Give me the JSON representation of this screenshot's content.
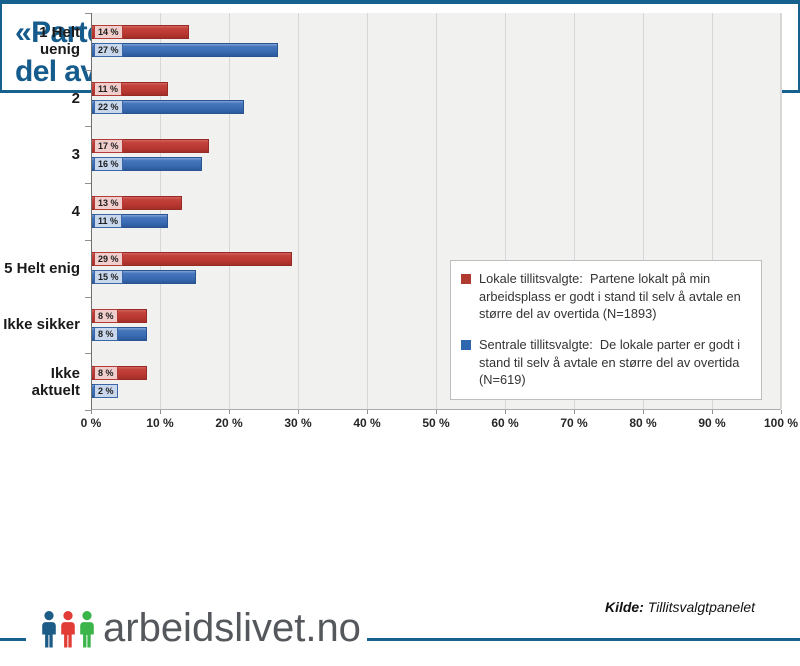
{
  "header": {
    "title": "«Partene lokalt er godt i stand til selv å avtale en større del av overtida.»"
  },
  "chart_data": {
    "type": "bar",
    "orientation": "horizontal",
    "title": "",
    "categories": [
      "1 Helt uenig",
      "2",
      "3",
      "4",
      "5 Helt enig",
      "Ikke sikker",
      "Ikke aktuelt"
    ],
    "series": [
      {
        "name": "Lokale tillitsvalgte:  Partene lokalt på min arbeidsplass er godt i stand til selv å avtale en større del av overtida (N=1893)",
        "color": "#bb3933",
        "values": [
          14,
          11,
          17,
          13,
          29,
          8,
          8
        ]
      },
      {
        "name": "Sentrale tillitsvalgte:  De lokale parter er godt i stand til selv å avtale en større del av overtida (N=619)",
        "color": "#3a6cb4",
        "values": [
          27,
          22,
          16,
          11,
          15,
          8,
          2
        ]
      }
    ],
    "value_suffix": " %",
    "xlim": [
      0,
      100
    ],
    "x_ticks": [
      "0 %",
      "10 %",
      "20 %",
      "30 %",
      "40 %",
      "50 %",
      "60 %",
      "70 %",
      "80 %",
      "90 %",
      "100 %"
    ],
    "grid": true,
    "legend_position": "inside-right",
    "plot_background": "#f1f1f0",
    "gridline_color": "#d7d7d7"
  },
  "footer": {
    "kilde_label": "Kilde:",
    "kilde_value": " Tillitsvalgtpanelet",
    "logo_text": "arbeidslivet.no",
    "logo_person_colors": [
      "#1d5c86",
      "#e23c36",
      "#3bb44a"
    ],
    "accent_color": "#17618f"
  }
}
